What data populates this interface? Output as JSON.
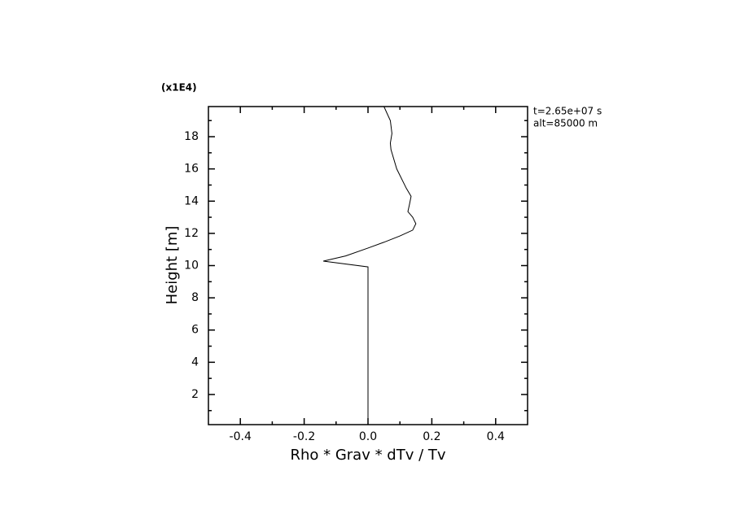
{
  "chart_data": {
    "type": "line",
    "xlabel": "Rho * Grav * dTv / Tv",
    "ylabel": "Height [m]",
    "y_multiplier": "(x1E4)",
    "annotations": [
      "t=2.65e+07 s",
      "alt=85000 m"
    ],
    "x": [
      0,
      0,
      -0.14,
      -0.07,
      0,
      0.05,
      0.1,
      0.14,
      0.15,
      0.14,
      0.125,
      0.13,
      0.135,
      0.12,
      0.09,
      0.072,
      0.07,
      0.075,
      0.07,
      0.05
    ],
    "values": [
      0.13,
      9.92,
      10.28,
      10.6,
      11.09,
      11.45,
      11.84,
      12.2,
      12.6,
      13.0,
      13.35,
      13.8,
      14.3,
      14.8,
      16.0,
      17.2,
      17.6,
      18.2,
      19.0,
      19.87
    ],
    "color": "#000000",
    "xlim": [
      -0.5,
      0.5
    ],
    "ylim": [
      0.13,
      19.87
    ],
    "xticks": [
      -0.4,
      -0.2,
      {
        "value": 0,
        "label": "0.0"
      },
      0.2,
      0.4
    ],
    "yticks": [
      2,
      4,
      6,
      8,
      10,
      12,
      14,
      16,
      18
    ],
    "xminorticks": [
      -0.3,
      -0.1,
      0.1,
      0.3
    ],
    "yminorticks": [
      1,
      3,
      5,
      7,
      9,
      11,
      13,
      15,
      17,
      19
    ],
    "grid": false
  }
}
